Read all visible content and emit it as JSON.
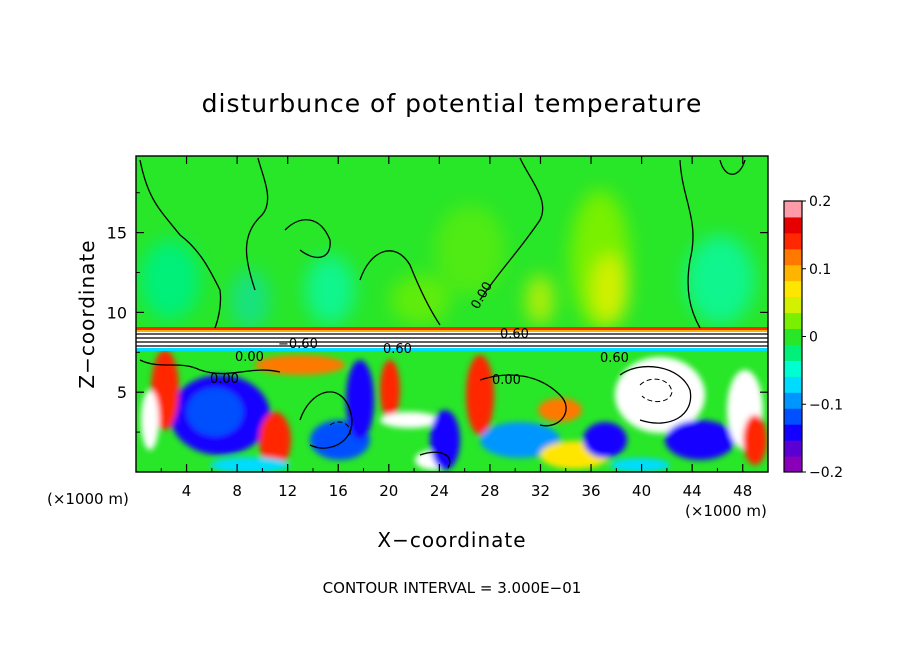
{
  "chart_data": {
    "type": "heatmap",
    "title": "disturbunce of potential temperature",
    "xlabel": "X−coordinate",
    "ylabel": "Z−coordinate",
    "x_unit_left": "(×1000 m)",
    "x_unit_right": "(×1000 m)",
    "footer": "CONTOUR INTERVAL = 3.000E−01",
    "xlim": [
      0,
      50
    ],
    "ylim": [
      0,
      19.8
    ],
    "x_ticks": [
      "4",
      "8",
      "12",
      "16",
      "20",
      "24",
      "28",
      "32",
      "36",
      "40",
      "44",
      "48"
    ],
    "y_ticks": [
      "5",
      "10",
      "15"
    ],
    "colorbar": {
      "range": [
        -0.2,
        0.2
      ],
      "tick_labels": [
        "0.2",
        "0.1",
        "0",
        "−0.1",
        "−0.2"
      ],
      "colors": [
        "#8a00b8",
        "#5a00d2",
        "#1400ff",
        "#0050ff",
        "#0096ff",
        "#00dcff",
        "#00ffd0",
        "#00f07a",
        "#28e628",
        "#78f000",
        "#d2f000",
        "#ffe600",
        "#ffb400",
        "#ff7800",
        "#ff2800",
        "#e60000",
        "#ff9aa8"
      ]
    },
    "contour_labels": [
      "0.00",
      "0.00",
      "−0.60",
      "0.60",
      "0.60",
      "0.60",
      "0.00",
      "0.00"
    ]
  }
}
